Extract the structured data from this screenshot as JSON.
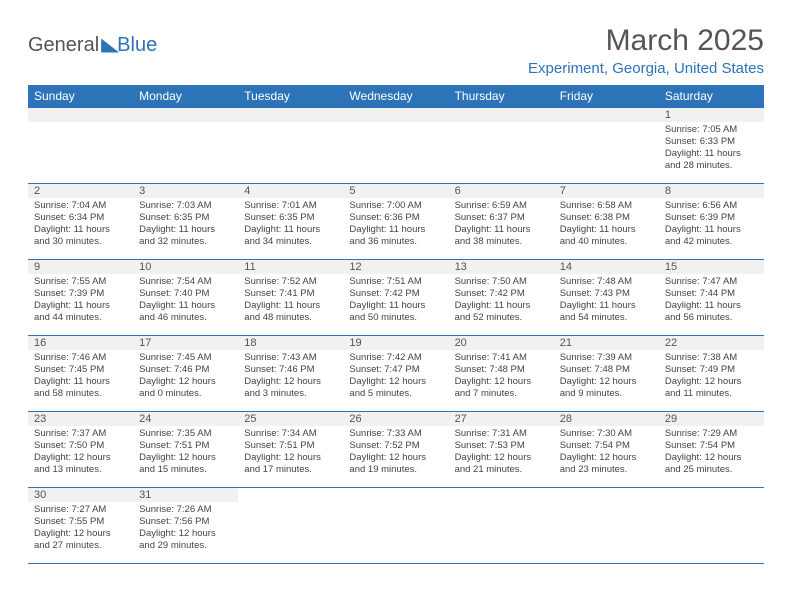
{
  "logo": {
    "text_a": "General",
    "text_b": "Blue",
    "color_a": "#666666",
    "color_b": "#2d73b8"
  },
  "title": "March 2025",
  "location": "Experiment, Georgia, United States",
  "header_bg": "#2d73b8",
  "header_fg": "#ffffff",
  "daynum_bg": "#f1f1f1",
  "border_color": "#2d73b8",
  "weekdays": [
    "Sunday",
    "Monday",
    "Tuesday",
    "Wednesday",
    "Thursday",
    "Friday",
    "Saturday"
  ],
  "weeks": [
    [
      null,
      null,
      null,
      null,
      null,
      null,
      {
        "n": "1",
        "rise": "7:05 AM",
        "set": "6:33 PM",
        "dl": "11 hours and 28 minutes."
      }
    ],
    [
      {
        "n": "2",
        "rise": "7:04 AM",
        "set": "6:34 PM",
        "dl": "11 hours and 30 minutes."
      },
      {
        "n": "3",
        "rise": "7:03 AM",
        "set": "6:35 PM",
        "dl": "11 hours and 32 minutes."
      },
      {
        "n": "4",
        "rise": "7:01 AM",
        "set": "6:35 PM",
        "dl": "11 hours and 34 minutes."
      },
      {
        "n": "5",
        "rise": "7:00 AM",
        "set": "6:36 PM",
        "dl": "11 hours and 36 minutes."
      },
      {
        "n": "6",
        "rise": "6:59 AM",
        "set": "6:37 PM",
        "dl": "11 hours and 38 minutes."
      },
      {
        "n": "7",
        "rise": "6:58 AM",
        "set": "6:38 PM",
        "dl": "11 hours and 40 minutes."
      },
      {
        "n": "8",
        "rise": "6:56 AM",
        "set": "6:39 PM",
        "dl": "11 hours and 42 minutes."
      }
    ],
    [
      {
        "n": "9",
        "rise": "7:55 AM",
        "set": "7:39 PM",
        "dl": "11 hours and 44 minutes."
      },
      {
        "n": "10",
        "rise": "7:54 AM",
        "set": "7:40 PM",
        "dl": "11 hours and 46 minutes."
      },
      {
        "n": "11",
        "rise": "7:52 AM",
        "set": "7:41 PM",
        "dl": "11 hours and 48 minutes."
      },
      {
        "n": "12",
        "rise": "7:51 AM",
        "set": "7:42 PM",
        "dl": "11 hours and 50 minutes."
      },
      {
        "n": "13",
        "rise": "7:50 AM",
        "set": "7:42 PM",
        "dl": "11 hours and 52 minutes."
      },
      {
        "n": "14",
        "rise": "7:48 AM",
        "set": "7:43 PM",
        "dl": "11 hours and 54 minutes."
      },
      {
        "n": "15",
        "rise": "7:47 AM",
        "set": "7:44 PM",
        "dl": "11 hours and 56 minutes."
      }
    ],
    [
      {
        "n": "16",
        "rise": "7:46 AM",
        "set": "7:45 PM",
        "dl": "11 hours and 58 minutes."
      },
      {
        "n": "17",
        "rise": "7:45 AM",
        "set": "7:46 PM",
        "dl": "12 hours and 0 minutes."
      },
      {
        "n": "18",
        "rise": "7:43 AM",
        "set": "7:46 PM",
        "dl": "12 hours and 3 minutes."
      },
      {
        "n": "19",
        "rise": "7:42 AM",
        "set": "7:47 PM",
        "dl": "12 hours and 5 minutes."
      },
      {
        "n": "20",
        "rise": "7:41 AM",
        "set": "7:48 PM",
        "dl": "12 hours and 7 minutes."
      },
      {
        "n": "21",
        "rise": "7:39 AM",
        "set": "7:48 PM",
        "dl": "12 hours and 9 minutes."
      },
      {
        "n": "22",
        "rise": "7:38 AM",
        "set": "7:49 PM",
        "dl": "12 hours and 11 minutes."
      }
    ],
    [
      {
        "n": "23",
        "rise": "7:37 AM",
        "set": "7:50 PM",
        "dl": "12 hours and 13 minutes."
      },
      {
        "n": "24",
        "rise": "7:35 AM",
        "set": "7:51 PM",
        "dl": "12 hours and 15 minutes."
      },
      {
        "n": "25",
        "rise": "7:34 AM",
        "set": "7:51 PM",
        "dl": "12 hours and 17 minutes."
      },
      {
        "n": "26",
        "rise": "7:33 AM",
        "set": "7:52 PM",
        "dl": "12 hours and 19 minutes."
      },
      {
        "n": "27",
        "rise": "7:31 AM",
        "set": "7:53 PM",
        "dl": "12 hours and 21 minutes."
      },
      {
        "n": "28",
        "rise": "7:30 AM",
        "set": "7:54 PM",
        "dl": "12 hours and 23 minutes."
      },
      {
        "n": "29",
        "rise": "7:29 AM",
        "set": "7:54 PM",
        "dl": "12 hours and 25 minutes."
      }
    ],
    [
      {
        "n": "30",
        "rise": "7:27 AM",
        "set": "7:55 PM",
        "dl": "12 hours and 27 minutes."
      },
      {
        "n": "31",
        "rise": "7:26 AM",
        "set": "7:56 PM",
        "dl": "12 hours and 29 minutes."
      },
      null,
      null,
      null,
      null,
      null
    ]
  ],
  "labels": {
    "sunrise": "Sunrise:",
    "sunset": "Sunset:",
    "daylight": "Daylight:"
  }
}
